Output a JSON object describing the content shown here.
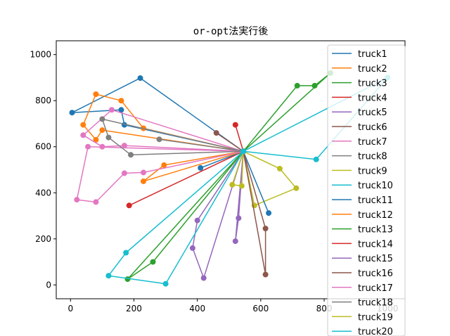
{
  "chart_data": {
    "type": "line",
    "title": "or-opt法実行後",
    "xlabel": "",
    "ylabel": "",
    "xlim": [
      -45,
      1055
    ],
    "ylim": [
      -60,
      1060
    ],
    "xticks": [
      0,
      200,
      400,
      600,
      800,
      1000
    ],
    "yticks": [
      0,
      200,
      400,
      600,
      800,
      1000
    ],
    "grid": false,
    "legend_position": "top-right",
    "depot": [
      545,
      580
    ],
    "series": [
      {
        "name": "truck1",
        "color": "#1f77b4",
        "points": [
          [
            545,
            580
          ],
          [
            170,
            695
          ],
          [
            160,
            760
          ],
          [
            5,
            748
          ],
          [
            220,
            898
          ],
          [
            545,
            580
          ]
        ]
      },
      {
        "name": "truck2",
        "color": "#ff7f0e",
        "points": [
          [
            545,
            580
          ],
          [
            230,
            680
          ],
          [
            160,
            800
          ],
          [
            80,
            828
          ],
          [
            40,
            695
          ],
          [
            80,
            630
          ],
          [
            100,
            672
          ],
          [
            545,
            580
          ]
        ]
      },
      {
        "name": "truck3",
        "color": "#2ca02c",
        "points": [
          [
            545,
            580
          ],
          [
            715,
            865
          ],
          [
            770,
            865
          ],
          [
            820,
            920
          ],
          [
            545,
            580
          ]
        ]
      },
      {
        "name": "truck4",
        "color": "#d62728",
        "points": [
          [
            545,
            580
          ],
          [
            185,
            345
          ],
          [
            545,
            580
          ]
        ]
      },
      {
        "name": "truck5",
        "color": "#9467bd",
        "points": [
          [
            545,
            580
          ],
          [
            400,
            280
          ],
          [
            385,
            160
          ],
          [
            420,
            30
          ],
          [
            545,
            580
          ]
        ]
      },
      {
        "name": "truck6",
        "color": "#8c564b",
        "points": [
          [
            545,
            580
          ],
          [
            460,
            660
          ],
          [
            545,
            580
          ]
        ]
      },
      {
        "name": "truck7",
        "color": "#e377c2",
        "points": [
          [
            545,
            580
          ],
          [
            130,
            760
          ],
          [
            40,
            650
          ],
          [
            100,
            600
          ],
          [
            170,
            605
          ],
          [
            545,
            580
          ]
        ]
      },
      {
        "name": "truck8",
        "color": "#7f7f7f",
        "points": [
          [
            545,
            580
          ],
          [
            280,
            632
          ],
          [
            545,
            580
          ]
        ]
      },
      {
        "name": "truck9",
        "color": "#bcbd22",
        "points": [
          [
            545,
            580
          ],
          [
            660,
            505
          ],
          [
            712,
            420
          ],
          [
            580,
            345
          ],
          [
            545,
            580
          ]
        ]
      },
      {
        "name": "truck10",
        "color": "#17becf",
        "points": [
          [
            545,
            580
          ],
          [
            775,
            545
          ],
          [
            1000,
            900
          ],
          [
            545,
            580
          ]
        ]
      },
      {
        "name": "truck11",
        "color": "#1f77b4",
        "points": [
          [
            545,
            580
          ],
          [
            410,
            508
          ],
          [
            545,
            580
          ],
          [
            625,
            312
          ],
          [
            545,
            580
          ]
        ]
      },
      {
        "name": "truck12",
        "color": "#ff7f0e",
        "points": [
          [
            545,
            580
          ],
          [
            295,
            520
          ],
          [
            230,
            450
          ],
          [
            545,
            580
          ]
        ]
      },
      {
        "name": "truck13",
        "color": "#2ca02c",
        "points": [
          [
            545,
            580
          ],
          [
            180,
            25
          ],
          [
            260,
            100
          ],
          [
            545,
            580
          ]
        ]
      },
      {
        "name": "truck14",
        "color": "#d62728",
        "points": [
          [
            545,
            580
          ],
          [
            520,
            695
          ],
          [
            545,
            580
          ]
        ]
      },
      {
        "name": "truck15",
        "color": "#9467bd",
        "points": [
          [
            545,
            580
          ],
          [
            530,
            290
          ],
          [
            520,
            190
          ],
          [
            545,
            580
          ]
        ]
      },
      {
        "name": "truck16",
        "color": "#8c564b",
        "points": [
          [
            545,
            580
          ],
          [
            615,
            245
          ],
          [
            615,
            45
          ],
          [
            545,
            580
          ]
        ]
      },
      {
        "name": "truck17",
        "color": "#e377c2",
        "points": [
          [
            545,
            580
          ],
          [
            230,
            488
          ],
          [
            170,
            485
          ],
          [
            80,
            360
          ],
          [
            20,
            370
          ],
          [
            55,
            600
          ],
          [
            545,
            580
          ]
        ]
      },
      {
        "name": "truck18",
        "color": "#7f7f7f",
        "points": [
          [
            545,
            580
          ],
          [
            190,
            565
          ],
          [
            120,
            640
          ],
          [
            100,
            720
          ],
          [
            545,
            580
          ]
        ]
      },
      {
        "name": "truck19",
        "color": "#bcbd22",
        "points": [
          [
            545,
            580
          ],
          [
            540,
            430
          ],
          [
            510,
            435
          ],
          [
            545,
            580
          ]
        ]
      },
      {
        "name": "truck20",
        "color": "#17becf",
        "points": [
          [
            545,
            580
          ],
          [
            175,
            140
          ],
          [
            120,
            40
          ],
          [
            300,
            5
          ],
          [
            545,
            580
          ]
        ]
      }
    ]
  }
}
